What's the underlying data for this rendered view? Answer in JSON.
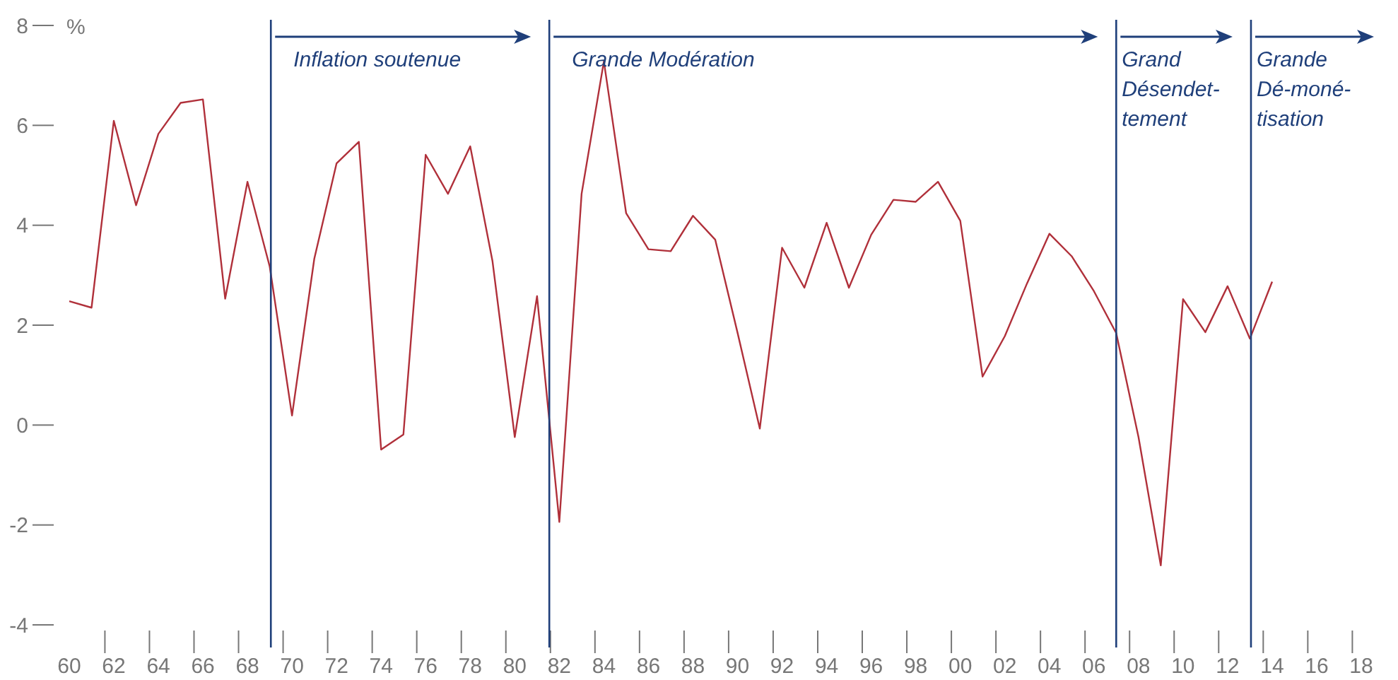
{
  "chart_data": {
    "type": "line",
    "ylabel": "%",
    "x": [
      1960,
      1961,
      1962,
      1963,
      1964,
      1965,
      1966,
      1967,
      1968,
      1969,
      1970,
      1971,
      1972,
      1973,
      1974,
      1975,
      1976,
      1977,
      1978,
      1979,
      1980,
      1981,
      1982,
      1983,
      1984,
      1985,
      1986,
      1987,
      1988,
      1989,
      1990,
      1991,
      1992,
      1993,
      1994,
      1995,
      1996,
      1997,
      1998,
      1999,
      2000,
      2001,
      2002,
      2003,
      2004,
      2005,
      2006,
      2007,
      2008,
      2009,
      2010,
      2011,
      2012,
      2013,
      2014
    ],
    "series": [
      {
        "color": "#b0303a",
        "values": [
          2.48,
          2.35,
          6.09,
          4.4,
          5.83,
          6.45,
          6.52,
          2.53,
          4.87,
          3.17,
          0.19,
          3.33,
          5.24,
          5.67,
          -0.49,
          -0.19,
          5.41,
          4.63,
          5.58,
          3.28,
          -0.24,
          2.58,
          -1.94,
          4.63,
          7.28,
          4.24,
          3.52,
          3.48,
          4.19,
          3.71,
          1.85,
          -0.07,
          3.55,
          2.75,
          4.05,
          2.75,
          3.81,
          4.51,
          4.47,
          4.87,
          4.09,
          0.97,
          1.78,
          2.84,
          3.83,
          3.38,
          2.68,
          1.84,
          -0.24,
          -2.81,
          2.52,
          1.86,
          2.78,
          1.73,
          2.87
        ]
      }
    ],
    "xticks": [
      {
        "value": 1960,
        "label": "60"
      },
      {
        "value": 1962,
        "label": "62"
      },
      {
        "value": 1964,
        "label": "64"
      },
      {
        "value": 1966,
        "label": "66"
      },
      {
        "value": 1968,
        "label": "68"
      },
      {
        "value": 1970,
        "label": "70"
      },
      {
        "value": 1972,
        "label": "72"
      },
      {
        "value": 1974,
        "label": "74"
      },
      {
        "value": 1976,
        "label": "76"
      },
      {
        "value": 1978,
        "label": "78"
      },
      {
        "value": 1980,
        "label": "80"
      },
      {
        "value": 1982,
        "label": "82"
      },
      {
        "value": 1984,
        "label": "84"
      },
      {
        "value": 1986,
        "label": "86"
      },
      {
        "value": 1988,
        "label": "88"
      },
      {
        "value": 1990,
        "label": "90"
      },
      {
        "value": 1992,
        "label": "92"
      },
      {
        "value": 1994,
        "label": "94"
      },
      {
        "value": 1996,
        "label": "96"
      },
      {
        "value": 1998,
        "label": "98"
      },
      {
        "value": 2000,
        "label": "00"
      },
      {
        "value": 2002,
        "label": "02"
      },
      {
        "value": 2004,
        "label": "04"
      },
      {
        "value": 2006,
        "label": "06"
      },
      {
        "value": 2008,
        "label": "08"
      },
      {
        "value": 2010,
        "label": "10"
      },
      {
        "value": 2012,
        "label": "12"
      },
      {
        "value": 2014,
        "label": "14"
      },
      {
        "value": 2016,
        "label": "16"
      },
      {
        "value": 2018,
        "label": "18"
      },
      {
        "value": 1961.6,
        "label": null
      },
      {
        "value": 1963.6,
        "label": null
      },
      {
        "value": 1965.6,
        "label": null
      },
      {
        "value": 1967.6,
        "label": null
      },
      {
        "value": 1969.6,
        "label": null
      },
      {
        "value": 1971.6,
        "label": null
      },
      {
        "value": 1973.6,
        "label": null
      },
      {
        "value": 1975.6,
        "label": null
      },
      {
        "value": 1977.6,
        "label": null
      },
      {
        "value": 1979.6,
        "label": null
      },
      {
        "value": 1981.6,
        "label": null
      },
      {
        "value": 1983.6,
        "label": null
      },
      {
        "value": 1985.6,
        "label": null
      },
      {
        "value": 1987.6,
        "label": null
      },
      {
        "value": 1989.6,
        "label": null
      },
      {
        "value": 1991.6,
        "label": null
      },
      {
        "value": 1993.6,
        "label": null
      },
      {
        "value": 1995.6,
        "label": null
      },
      {
        "value": 1997.6,
        "label": null
      },
      {
        "value": 1999.6,
        "label": null
      },
      {
        "value": 2001.6,
        "label": null
      },
      {
        "value": 2003.6,
        "label": null
      },
      {
        "value": 2005.6,
        "label": null
      },
      {
        "value": 2007.6,
        "label": null
      },
      {
        "value": 2009.6,
        "label": null
      },
      {
        "value": 2011.6,
        "label": null
      },
      {
        "value": 2013.6,
        "label": null
      },
      {
        "value": 2015.6,
        "label": null
      },
      {
        "value": 2017.6,
        "label": null
      }
    ],
    "xlim": [
      1960,
      2018
    ],
    "ylim": [
      -4,
      8
    ],
    "yticks": [
      -4,
      -2,
      0,
      2,
      4,
      6,
      8
    ],
    "ref_lines": [
      {
        "axis": "x",
        "value": 1969.05,
        "label": "Inflation soutenue",
        "color": "#1f3f7a"
      },
      {
        "axis": "x",
        "value": 1981.55,
        "label": "Grande Modération",
        "color": "#1f3f7a"
      },
      {
        "axis": "x",
        "value": 2007,
        "label": "Grand\nDésendet-\ntement",
        "color": "#1f3f7a"
      },
      {
        "axis": "x",
        "value": 2013.05,
        "label": "Grande\nDé-moné-\ntisation",
        "color": "#1f3f7a"
      }
    ],
    "grid": false,
    "marker": "none",
    "line_style": "solid"
  }
}
